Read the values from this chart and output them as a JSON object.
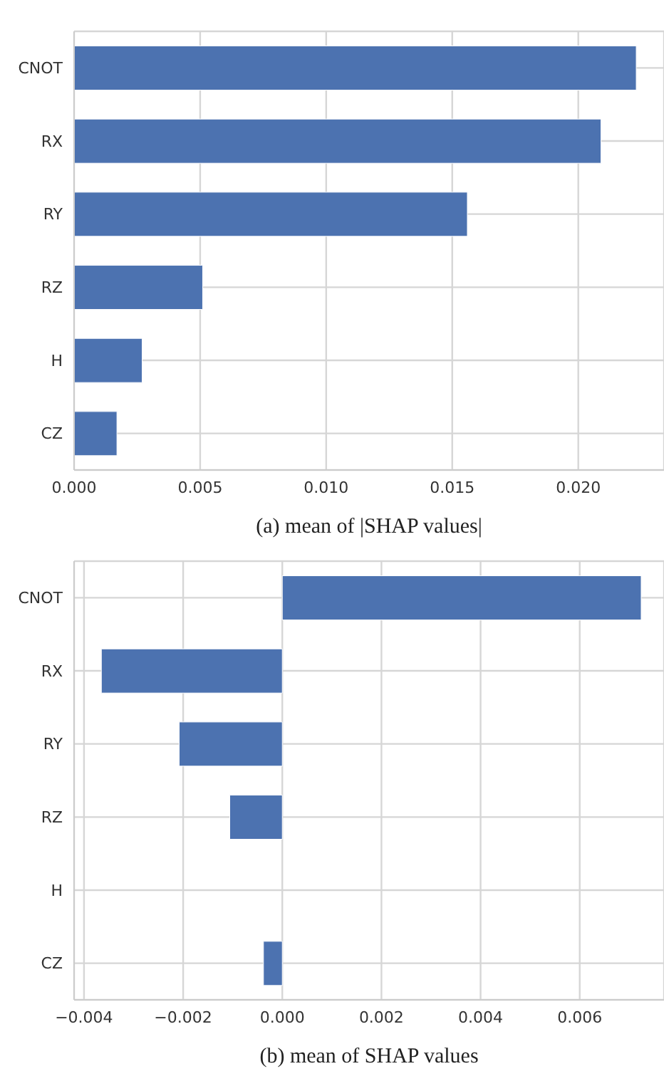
{
  "chart_data": [
    {
      "type": "bar",
      "orientation": "horizontal",
      "categories": [
        "CNOT",
        "RX",
        "RY",
        "RZ",
        "H",
        "CZ"
      ],
      "values": [
        0.0223,
        0.0209,
        0.0156,
        0.0051,
        0.0027,
        0.0017
      ],
      "color": "#4c72b0",
      "xlabel": "(a) mean of |SHAP values|",
      "xlim": [
        0,
        0.0234
      ],
      "xticks": [
        {
          "value": 0,
          "label": "0.000"
        },
        {
          "value": 0.005,
          "label": "0.005"
        },
        {
          "value": 0.01,
          "label": "0.010"
        },
        {
          "value": 0.015,
          "label": "0.015"
        },
        {
          "value": 0.02,
          "label": "0.020"
        }
      ],
      "grid": true
    },
    {
      "type": "bar",
      "orientation": "horizontal",
      "categories": [
        "CNOT",
        "RX",
        "RY",
        "RZ",
        "H",
        "CZ"
      ],
      "values": [
        0.00724,
        -0.00365,
        -0.00208,
        -0.00106,
        0,
        -0.00038
      ],
      "color": "#4c72b0",
      "xlabel": "(b) mean of SHAP values",
      "xlim": [
        -0.0042,
        0.0077
      ],
      "xticks": [
        {
          "value": -0.004,
          "label": "−0.004"
        },
        {
          "value": -0.002,
          "label": "−0.002"
        },
        {
          "value": 0,
          "label": "0.000"
        },
        {
          "value": 0.002,
          "label": "0.002"
        },
        {
          "value": 0.004,
          "label": "0.004"
        },
        {
          "value": 0.006,
          "label": "0.006"
        }
      ],
      "grid": true
    }
  ]
}
